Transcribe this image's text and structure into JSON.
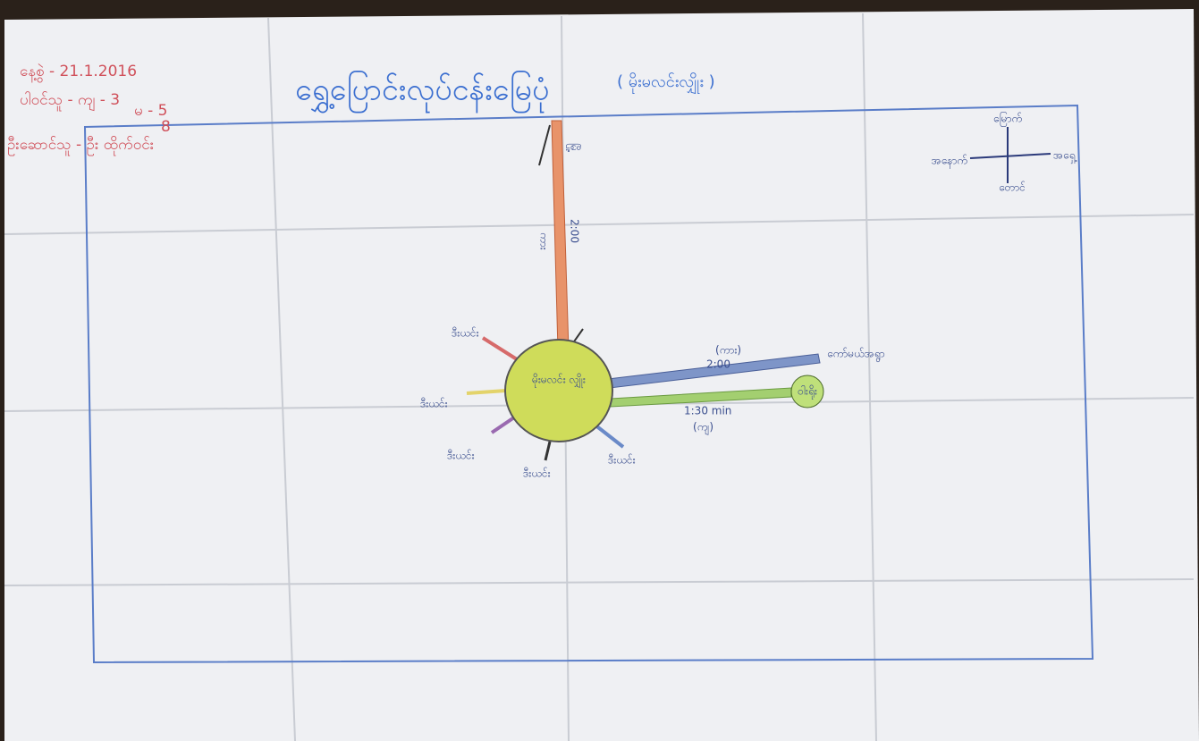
{
  "header": {
    "title": "ရွှေ့ပြောင်းလုပ်ငန်းမြေပုံ",
    "subtitle": "( မိုးမလင်းလျှိုး )",
    "date": "နေ့စွဲ - 21.1.2016",
    "participants": [
      "ပါဝင်သူ - ကျ - 3",
      "မ - 5",
      "8"
    ],
    "facilitator": "ဦးဆောင်သူ - ဦး ထိုက်ဝင်း"
  },
  "compass": {
    "north": "မြောက်",
    "east": "အရှေ့",
    "west": "အနောက်",
    "south": "တောင်"
  },
  "center": "မိုးမလင်း လျှိုး",
  "routes": [
    {
      "destination": "မြို့",
      "time": "2:00",
      "mode": "ကား"
    },
    {
      "destination": "ကော်မယ်အရွာ",
      "time": "2:00",
      "mode": "(ကား)"
    },
    {
      "destination": "ဝါးရိုး",
      "time": "1:30 min",
      "mode": "(ကျ)"
    }
  ],
  "spokes": [
    "ဒီးယင်း",
    "ဒီးယင်း",
    "ဒီးယင်း",
    "ဒီးယင်း",
    "ဒီးယင်း"
  ]
}
